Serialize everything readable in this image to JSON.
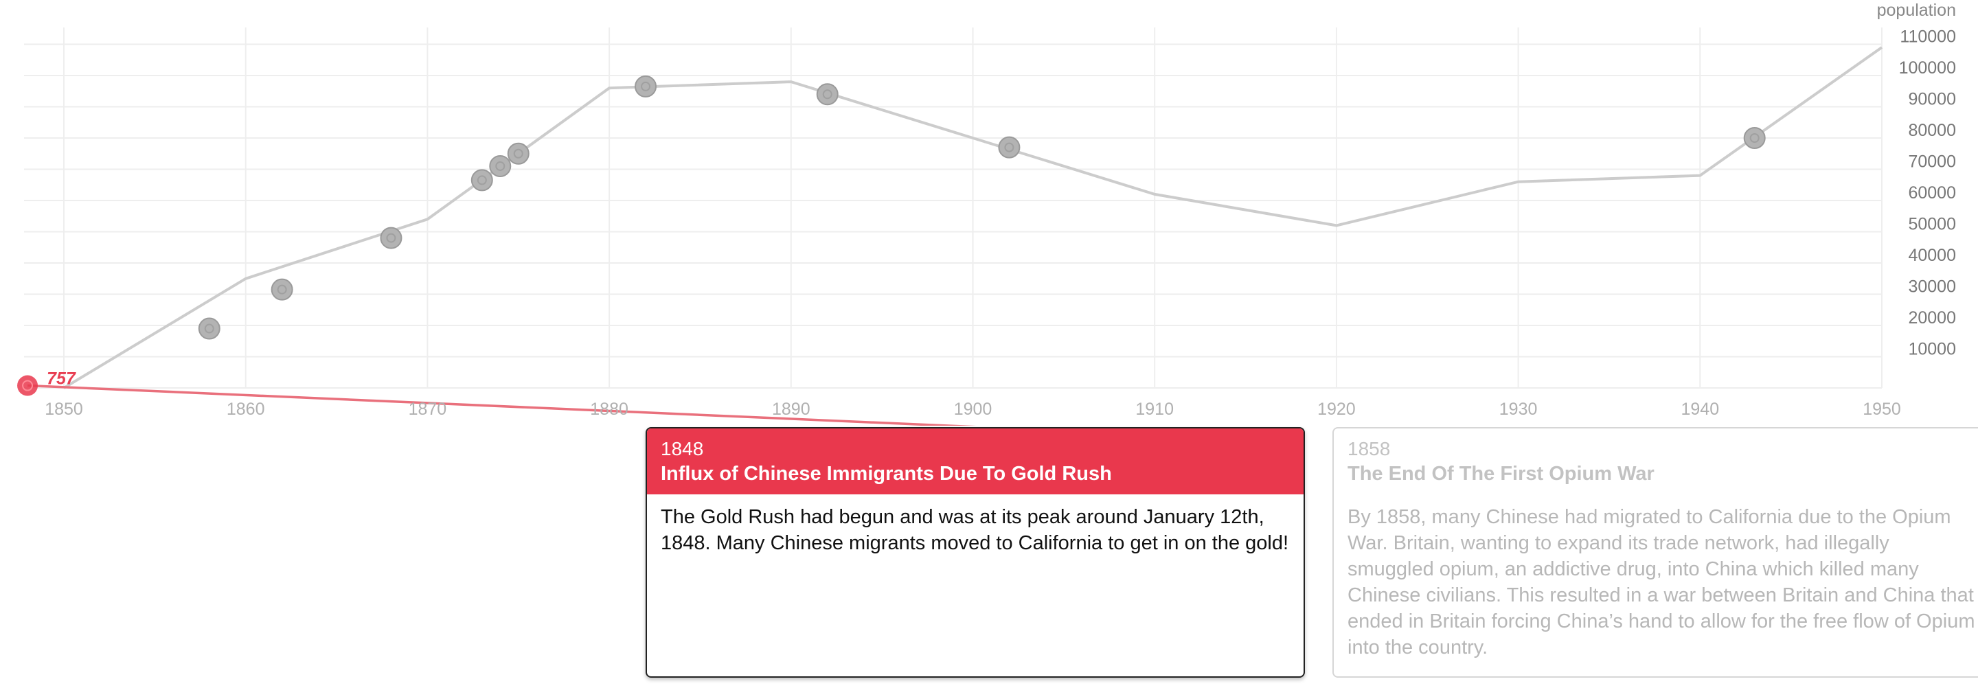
{
  "chart_data": {
    "type": "line",
    "y_axis_title": "population",
    "x_ticks": [
      "1850",
      "1860",
      "1870",
      "1880",
      "1890",
      "1900",
      "1910",
      "1920",
      "1930",
      "1940",
      "1950"
    ],
    "y_ticks": [
      "10000",
      "20000",
      "30000",
      "40000",
      "50000",
      "60000",
      "70000",
      "80000",
      "90000",
      "100000",
      "110000"
    ],
    "xlim": [
      1848,
      1950
    ],
    "ylim": [
      0,
      115000
    ],
    "grid": true,
    "series": [
      {
        "points": [
          {
            "x": 1850,
            "y": 0
          },
          {
            "x": 1860,
            "y": 35000
          },
          {
            "x": 1870,
            "y": 54000
          },
          {
            "x": 1880,
            "y": 96000
          },
          {
            "x": 1890,
            "y": 98000
          },
          {
            "x": 1900,
            "y": 80000
          },
          {
            "x": 1910,
            "y": 62000
          },
          {
            "x": 1920,
            "y": 52000
          },
          {
            "x": 1930,
            "y": 66000
          },
          {
            "x": 1940,
            "y": 68000
          },
          {
            "x": 1950,
            "y": 109000
          }
        ]
      }
    ],
    "events": [
      {
        "x": 1848,
        "y": 757,
        "active": true,
        "label": "757"
      },
      {
        "x": 1858,
        "y": 19000,
        "active": false
      },
      {
        "x": 1862,
        "y": 31500,
        "active": false
      },
      {
        "x": 1868,
        "y": 48000,
        "active": false
      },
      {
        "x": 1873,
        "y": 66500,
        "active": false
      },
      {
        "x": 1874,
        "y": 71000,
        "active": false
      },
      {
        "x": 1875,
        "y": 75000,
        "active": false
      },
      {
        "x": 1882,
        "y": 96500,
        "active": false
      },
      {
        "x": 1892,
        "y": 94000,
        "active": false
      },
      {
        "x": 1902,
        "y": 77000,
        "active": false
      },
      {
        "x": 1943,
        "y": 80000,
        "active": false
      }
    ],
    "colors": {
      "line": "#cccccc",
      "grid": "#eeeeee",
      "point": "#b3b3b3",
      "point_border": "#9a9a9a",
      "active": "#e9384d",
      "connector": "#e9707c"
    }
  },
  "cards": {
    "active": {
      "year": "1848",
      "title": "Influx of Chinese Immigrants Due To Gold Rush",
      "body": "The Gold Rush had begun and was at its peak around January 12th, 1848. Many Chinese migrants moved to California to get in on the gold!"
    },
    "next": {
      "year": "1858",
      "title": "The End Of The First Opium War",
      "body": "By 1858, many Chinese had migrated to California due to the Opium War. Britain, wanting to expand its trade network, had illegally smuggled opium, an addictive drug, into China which killed many Chinese civilians. This resulted in a war between Britain and China that ended in Britain forcing China’s hand to allow for the free flow of Opium into the country."
    }
  }
}
